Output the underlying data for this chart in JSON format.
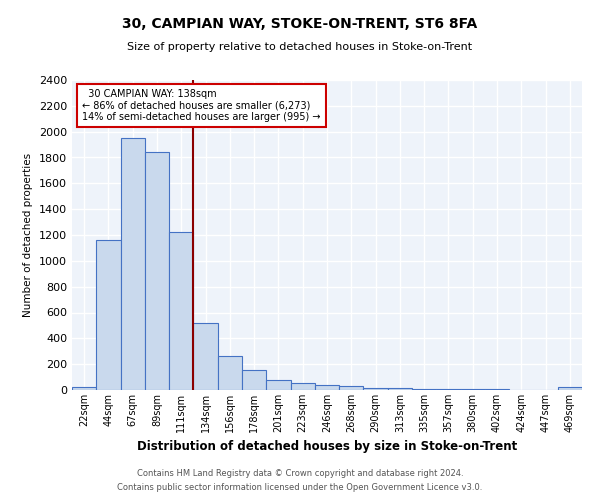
{
  "title1": "30, CAMPIAN WAY, STOKE-ON-TRENT, ST6 8FA",
  "title2": "Size of property relative to detached houses in Stoke-on-Trent",
  "xlabel": "Distribution of detached houses by size in Stoke-on-Trent",
  "ylabel": "Number of detached properties",
  "footnote1": "Contains HM Land Registry data © Crown copyright and database right 2024.",
  "footnote2": "Contains public sector information licensed under the Open Government Licence v3.0.",
  "categories": [
    "22sqm",
    "44sqm",
    "67sqm",
    "89sqm",
    "111sqm",
    "134sqm",
    "156sqm",
    "178sqm",
    "201sqm",
    "223sqm",
    "246sqm",
    "268sqm",
    "290sqm",
    "313sqm",
    "335sqm",
    "357sqm",
    "380sqm",
    "402sqm",
    "424sqm",
    "447sqm",
    "469sqm"
  ],
  "values": [
    25,
    1160,
    1950,
    1840,
    1220,
    520,
    265,
    155,
    80,
    52,
    42,
    30,
    18,
    14,
    8,
    5,
    4,
    4,
    0,
    0,
    20
  ],
  "bar_color": "#c9d9ed",
  "bar_edge_color": "#4472c4",
  "background_color": "#eef3fa",
  "grid_color": "#ffffff",
  "property_label": "30 CAMPIAN WAY: 138sqm",
  "pct_smaller": 86,
  "n_smaller": 6273,
  "pct_larger": 14,
  "n_larger": 995,
  "vline_x_index": 4.5,
  "vline_color": "#8b0000",
  "annotation_box_color": "#ffffff",
  "annotation_box_edge": "#cc0000",
  "ylim": [
    0,
    2400
  ],
  "yticks": [
    0,
    200,
    400,
    600,
    800,
    1000,
    1200,
    1400,
    1600,
    1800,
    2000,
    2200,
    2400
  ]
}
